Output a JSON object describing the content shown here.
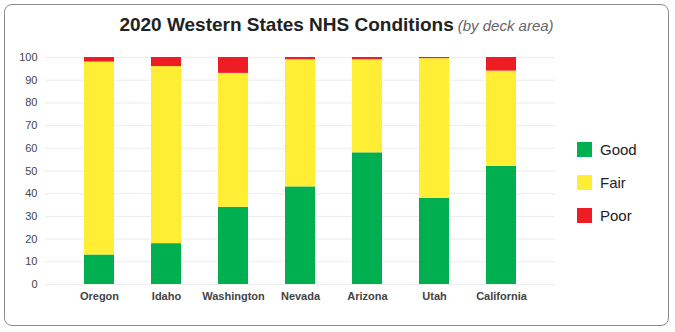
{
  "chart_data": {
    "type": "bar",
    "title": "2020 Western States NHS Conditions",
    "subtitle": "(by deck area)",
    "categories": [
      "Oregon",
      "Idaho",
      "Washington",
      "Nevada",
      "Arizona",
      "Utah",
      "California"
    ],
    "series": [
      {
        "name": "Good",
        "color": "#00b050",
        "values": [
          13,
          18,
          34,
          43,
          58,
          38,
          52
        ]
      },
      {
        "name": "Fair",
        "color": "#ffee33",
        "values": [
          85,
          78,
          59,
          56,
          41,
          61.5,
          42
        ]
      },
      {
        "name": "Poor",
        "color": "#ee1c25",
        "values": [
          2,
          4,
          7,
          1,
          1,
          0.5,
          6
        ]
      }
    ],
    "stacked": true,
    "ylim": [
      0,
      100
    ],
    "yticks": [
      0,
      10,
      20,
      30,
      40,
      50,
      60,
      70,
      80,
      90,
      100
    ],
    "grid": true,
    "legend": "right"
  }
}
